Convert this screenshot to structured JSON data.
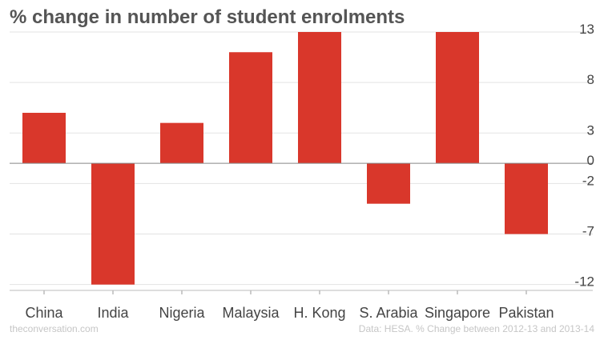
{
  "chart_data": {
    "type": "bar",
    "title": "% change in number of student enrolments",
    "categories": [
      "China",
      "India",
      "Nigeria",
      "Malaysia",
      "H. Kong",
      "S. Arabia",
      "Singapore",
      "Pakistan"
    ],
    "values": [
      5,
      -12,
      4,
      11,
      13,
      -4,
      13,
      -7
    ],
    "y_ticks": [
      13,
      8,
      3,
      0,
      -2,
      -7,
      -12
    ],
    "ylim": [
      -12.5,
      13
    ],
    "y_axis_side": "right",
    "grid": true,
    "bar_color": "#d9372b",
    "xlabel": "",
    "ylabel": ""
  },
  "footer": {
    "credit": "theconversation.com",
    "source": "Data: HESA. % Change between 2012-13 and 2013-14"
  }
}
